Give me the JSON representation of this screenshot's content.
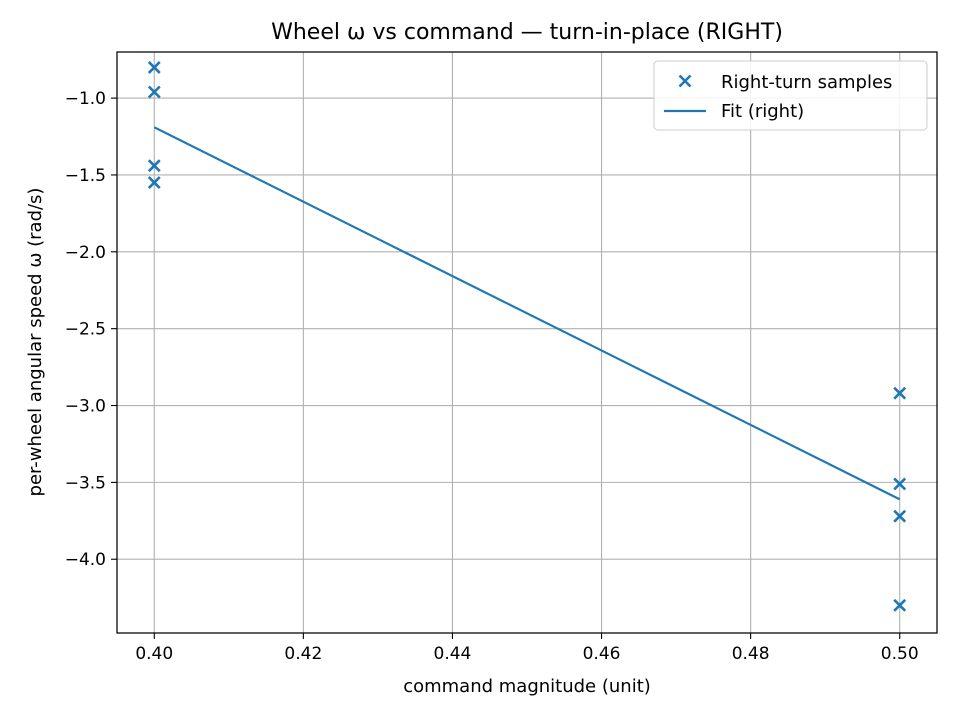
{
  "chart_data": {
    "type": "scatter",
    "title": "Wheel ω vs command — turn-in-place (RIGHT)",
    "xlabel": "command magnitude (unit)",
    "ylabel": "per-wheel angular speed ω (rad/s)",
    "xlim": [
      0.395,
      0.505
    ],
    "ylim": [
      -4.48,
      -0.7
    ],
    "x_ticks": [
      0.4,
      0.42,
      0.44,
      0.46,
      0.48,
      0.5
    ],
    "x_tick_labels": [
      "0.40",
      "0.42",
      "0.44",
      "0.46",
      "0.48",
      "0.50"
    ],
    "y_ticks": [
      -1.0,
      -1.5,
      -2.0,
      -2.5,
      -3.0,
      -3.5,
      -4.0
    ],
    "y_tick_labels": [
      "−1.0",
      "−1.5",
      "−2.0",
      "−2.5",
      "−3.0",
      "−3.5",
      "−4.0"
    ],
    "grid": true,
    "legend_position": "upper-right",
    "series": [
      {
        "name": "Right-turn samples",
        "kind": "scatter",
        "marker": "x",
        "color": "#1f77b4",
        "points": [
          {
            "x": 0.4,
            "y": -0.8
          },
          {
            "x": 0.4,
            "y": -0.96
          },
          {
            "x": 0.4,
            "y": -1.44
          },
          {
            "x": 0.4,
            "y": -1.55
          },
          {
            "x": 0.5,
            "y": -2.92
          },
          {
            "x": 0.5,
            "y": -3.51
          },
          {
            "x": 0.5,
            "y": -3.72
          },
          {
            "x": 0.5,
            "y": -4.3
          }
        ]
      },
      {
        "name": "Fit (right)",
        "kind": "line",
        "color": "#1f77b4",
        "points": [
          {
            "x": 0.4,
            "y": -1.19
          },
          {
            "x": 0.5,
            "y": -3.61
          }
        ]
      }
    ]
  }
}
